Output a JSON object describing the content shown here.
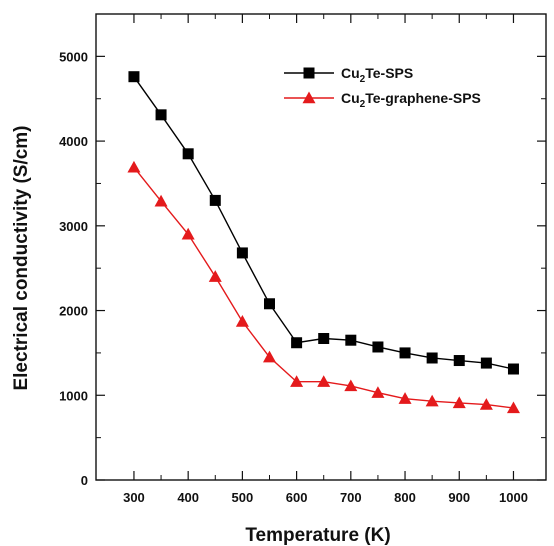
{
  "chart_data": {
    "type": "line",
    "title": "",
    "xlabel": "Temperature (K)",
    "ylabel": "Electrical conductivity (S/cm)",
    "xlim": [
      230,
      1060
    ],
    "ylim": [
      0,
      5500
    ],
    "xticks": [
      300,
      400,
      500,
      600,
      700,
      800,
      900,
      1000
    ],
    "xticks_minor": [
      350,
      450,
      550,
      650,
      750,
      850,
      950
    ],
    "yticks": [
      0,
      1000,
      2000,
      3000,
      4000,
      5000
    ],
    "yticks_minor": [
      500,
      1500,
      2500,
      3500,
      4500
    ],
    "grid": false,
    "legend_position": "top-right",
    "x": [
      300,
      350,
      400,
      450,
      500,
      550,
      600,
      650,
      700,
      750,
      800,
      850,
      900,
      950,
      1000
    ],
    "series": [
      {
        "name_main": "Cu",
        "name_sub": "2",
        "name_rest": "Te-SPS",
        "color": "#000000",
        "marker": "square",
        "values": [
          4760,
          4310,
          3850,
          3300,
          2680,
          2080,
          1620,
          1670,
          1650,
          1570,
          1500,
          1440,
          1410,
          1380,
          1310
        ]
      },
      {
        "name_main": "Cu",
        "name_sub": "2",
        "name_rest": "Te-graphene-SPS",
        "color": "#e41a1c",
        "marker": "triangle",
        "values": [
          3690,
          3290,
          2900,
          2400,
          1870,
          1450,
          1160,
          1160,
          1110,
          1030,
          960,
          930,
          910,
          890,
          850
        ]
      }
    ]
  }
}
